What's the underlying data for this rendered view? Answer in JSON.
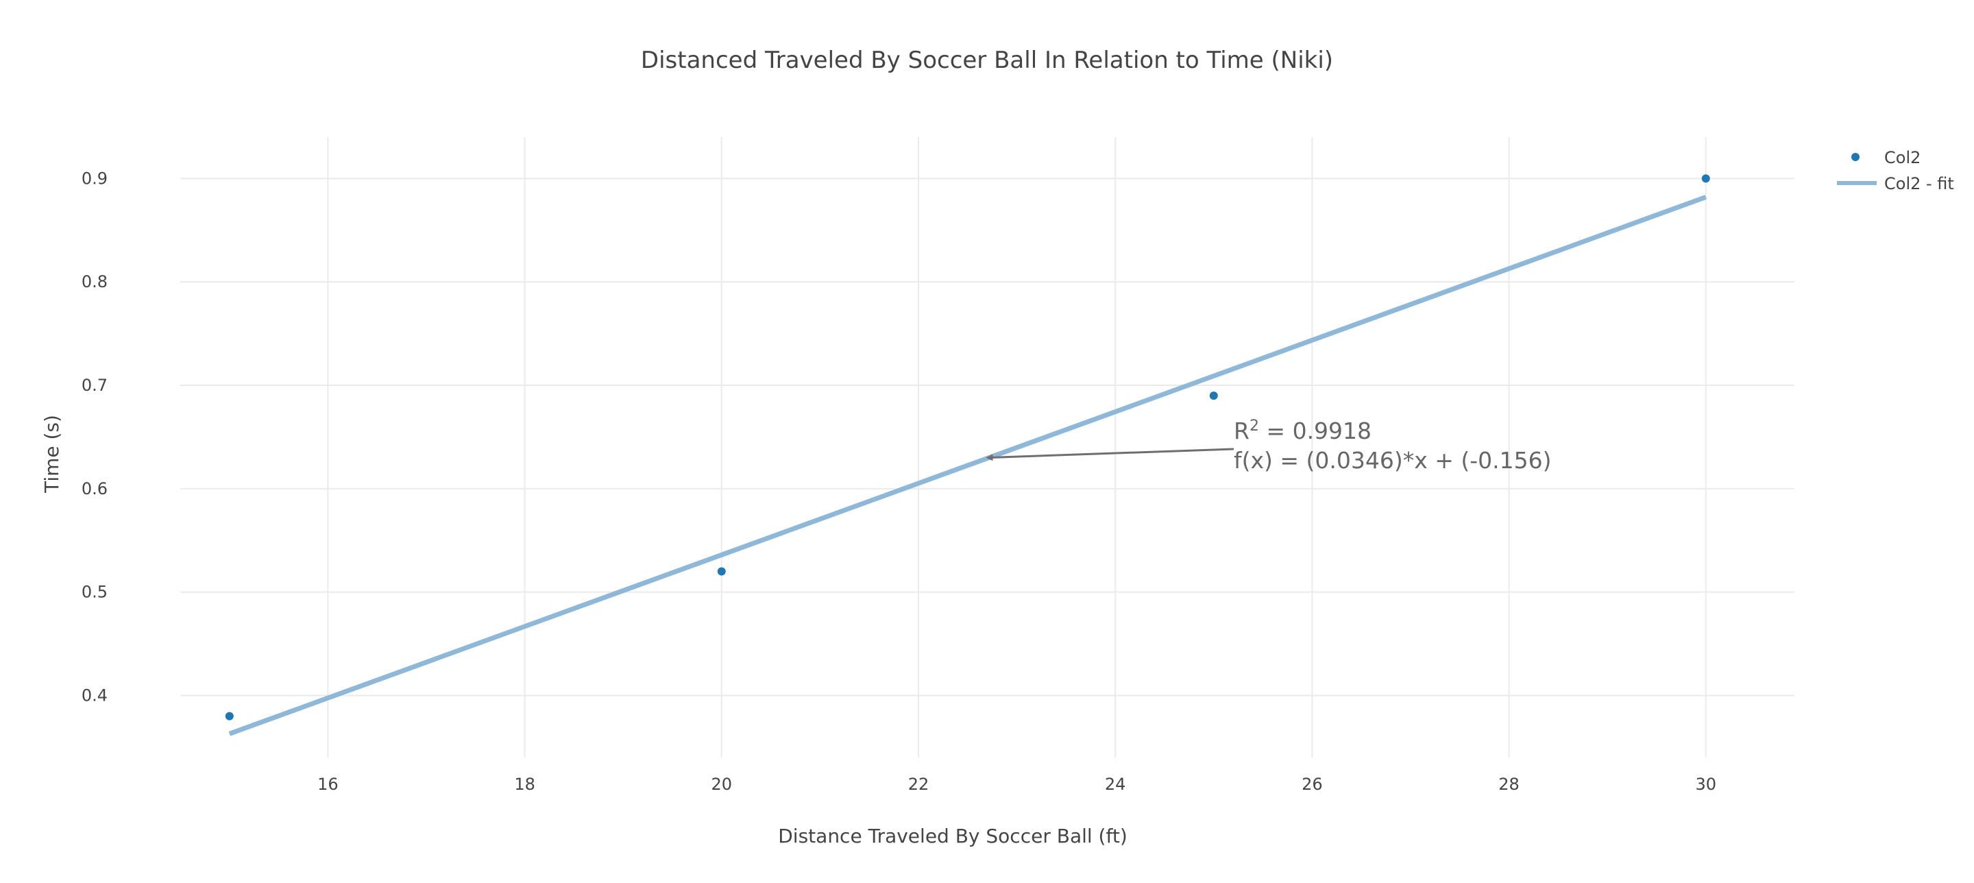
{
  "chart_data": {
    "type": "scatter",
    "title": "Distanced Traveled By Soccer Ball In Relation to Time (Niki)",
    "xlabel": "Distance Traveled By Soccer Ball (ft)",
    "ylabel": "Time (s)",
    "xlim": [
      14.5,
      30.9
    ],
    "ylim": [
      0.34,
      0.94
    ],
    "x_ticks": [
      16,
      18,
      20,
      22,
      24,
      26,
      28,
      30
    ],
    "y_ticks": [
      0.4,
      0.5,
      0.6,
      0.7,
      0.8,
      0.9
    ],
    "x_tick_labels": [
      "16",
      "18",
      "20",
      "22",
      "24",
      "26",
      "28",
      "30"
    ],
    "y_tick_labels": [
      "0.4",
      "0.5",
      "0.6",
      "0.7",
      "0.8",
      "0.9"
    ],
    "grid": true,
    "legend_position": "top-right",
    "series": [
      {
        "name": "Col2",
        "mode": "markers",
        "color": "#1f77b4",
        "x": [
          15,
          20,
          25,
          30
        ],
        "y": [
          0.38,
          0.52,
          0.69,
          0.9
        ]
      },
      {
        "name": "Col2 - fit",
        "mode": "line",
        "color": "#8fb8d8",
        "x": [
          15,
          30
        ],
        "y": [
          0.363,
          0.882
        ]
      }
    ],
    "annotation": {
      "r2_prefix": "R",
      "r2_sup": "2",
      "r2_value": " = 0.9918",
      "equation": "f(x) = (0.0346)*x + (-0.156)",
      "arrow_target": {
        "x": 22.7,
        "y": 0.63
      }
    }
  }
}
